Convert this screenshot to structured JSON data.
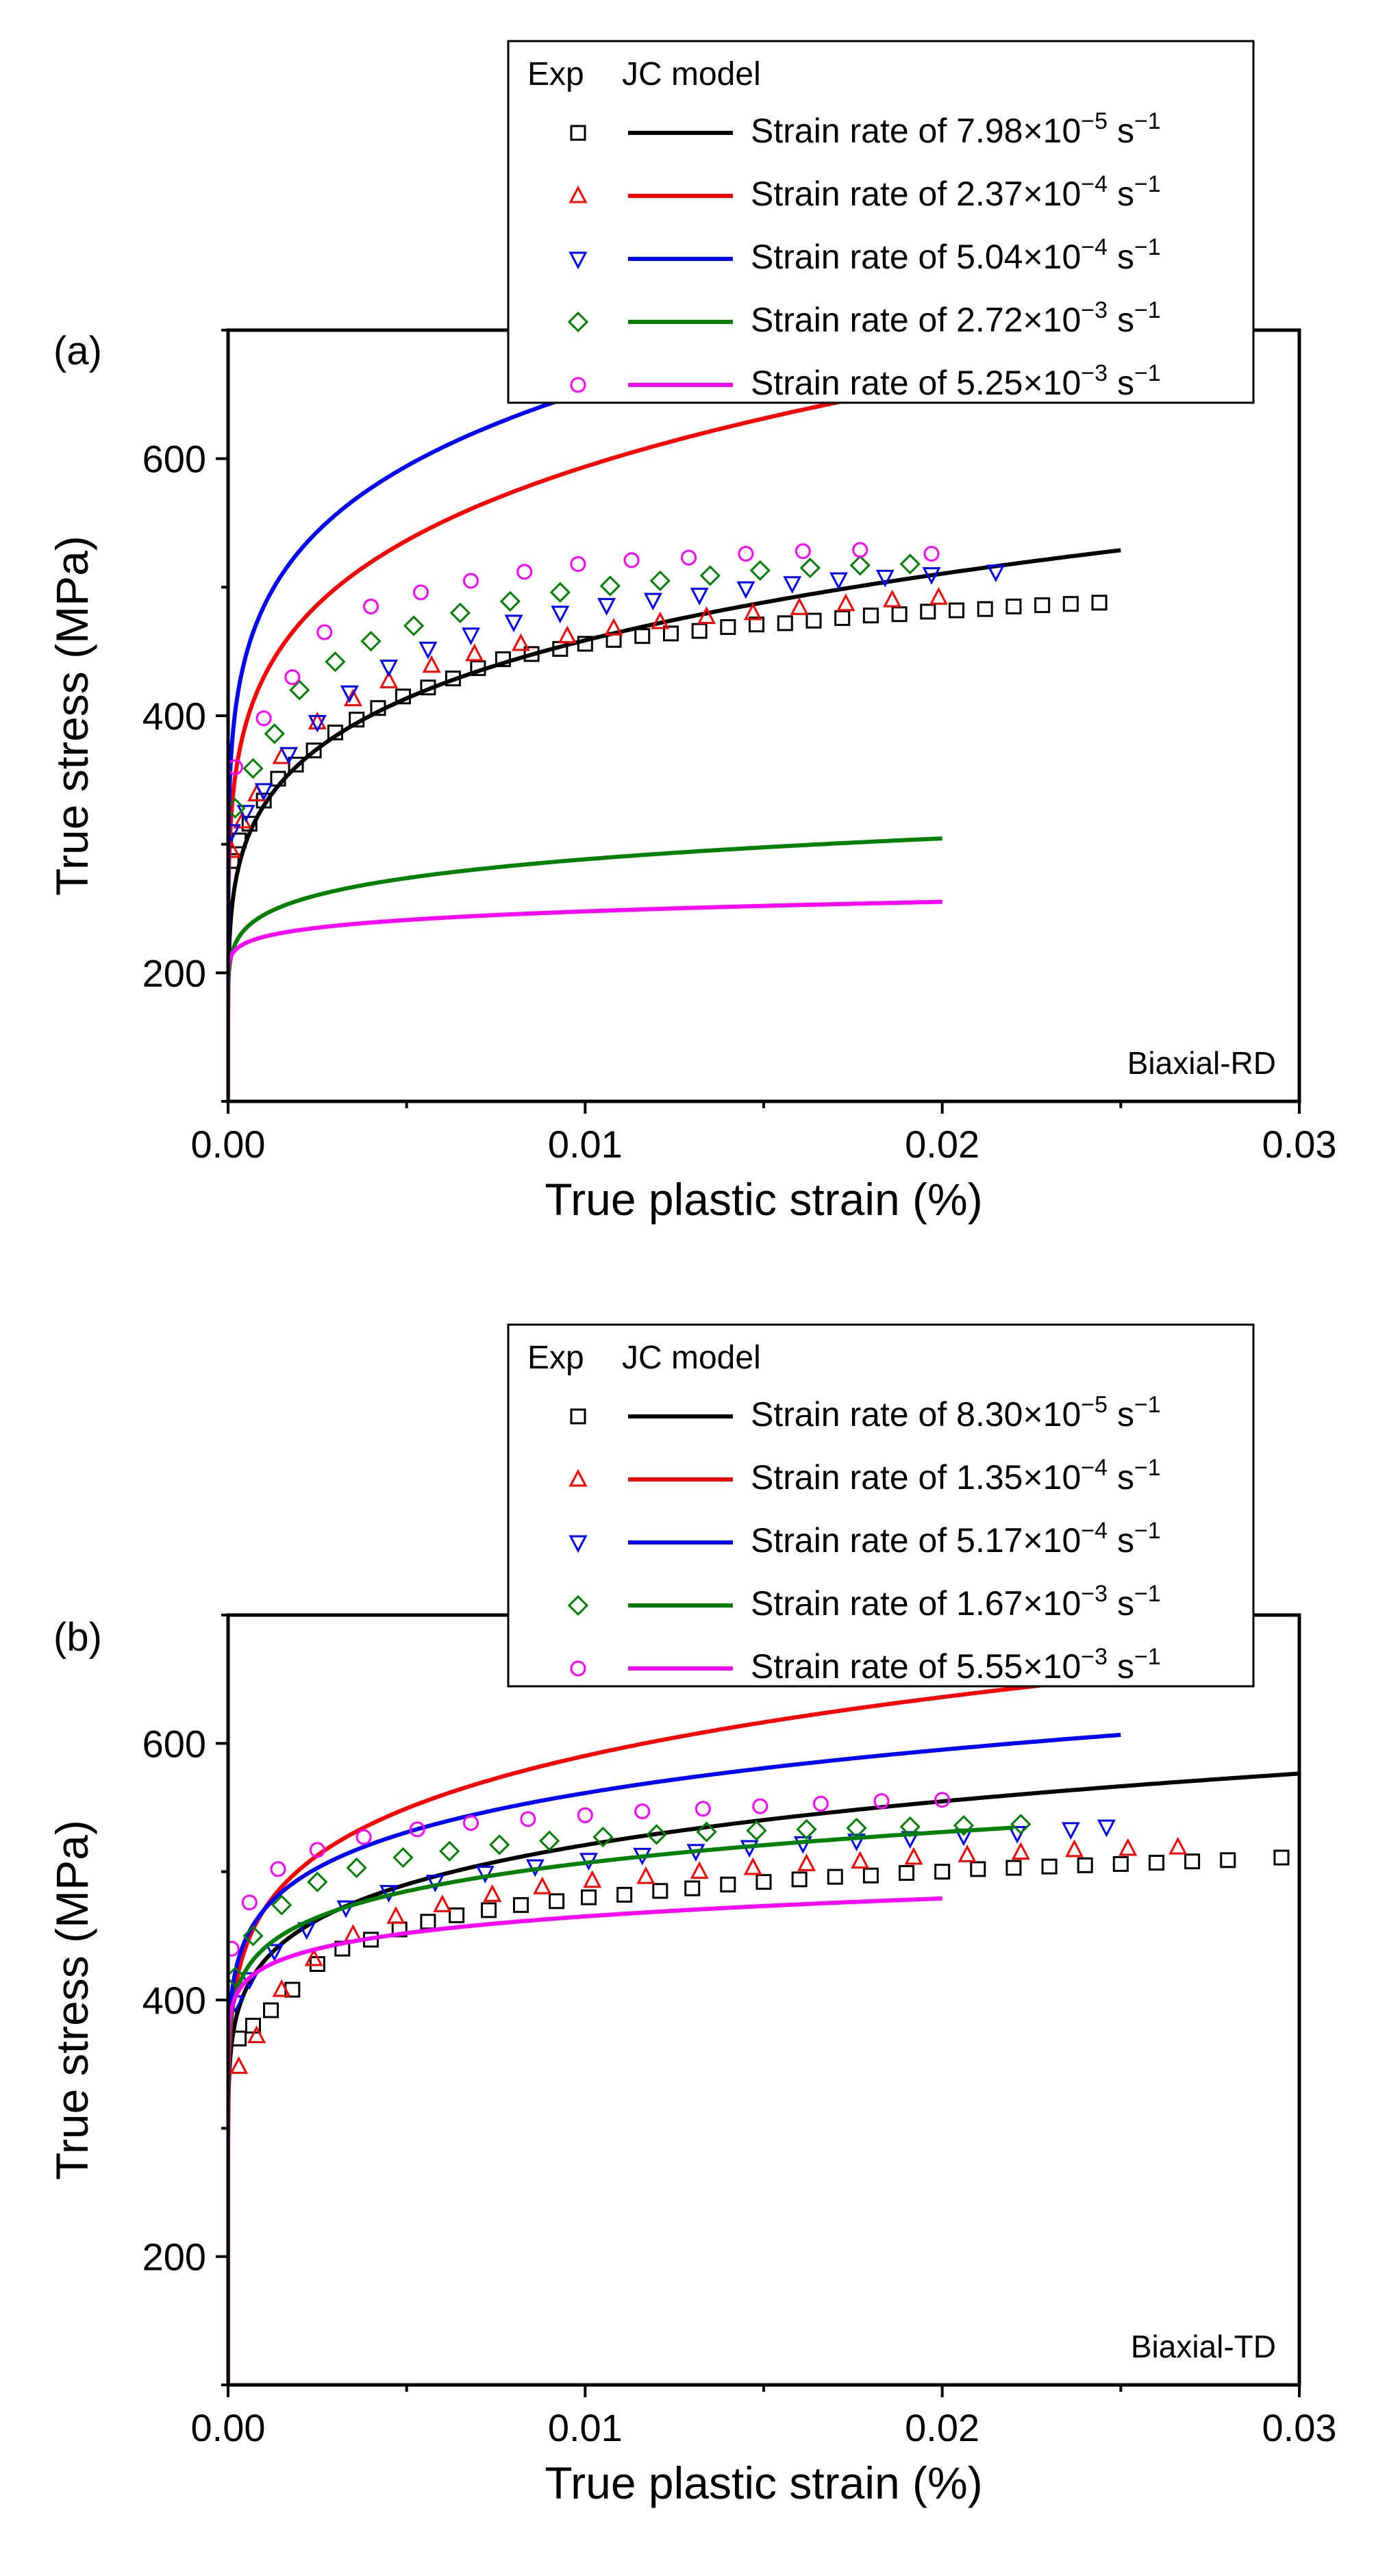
{
  "chart_data": [
    {
      "panel_label": "(a)",
      "type": "line",
      "xlabel": "True plastic strain (%)",
      "ylabel": "True stress (MPa)",
      "xlim": [
        0,
        0.03
      ],
      "ylim": [
        100,
        700
      ],
      "x_ticks": [
        "0.00",
        "0.01",
        "0.02",
        "0.03"
      ],
      "x_tick_values": [
        0,
        0.01,
        0.02,
        0.03
      ],
      "y_ticks": [
        "200",
        "400",
        "600"
      ],
      "y_tick_values": [
        200,
        400,
        600
      ],
      "annotation": "Biaxial-RD",
      "legend": {
        "header_exp": "Exp",
        "header_model": "JC model",
        "entries": [
          {
            "label_prefix": "Strain rate of 7.98×10",
            "exponent": "−5",
            "unit": " s",
            "unit_exponent": "−1"
          },
          {
            "label_prefix": "Strain rate of 2.37×10",
            "exponent": "−4",
            "unit": " s",
            "unit_exponent": "−1"
          },
          {
            "label_prefix": "Strain rate of 5.04×10",
            "exponent": "−4",
            "unit": " s",
            "unit_exponent": "−1"
          },
          {
            "label_prefix": "Strain rate of 2.72×10",
            "exponent": "−3",
            "unit": " s",
            "unit_exponent": "−1"
          },
          {
            "label_prefix": "Strain rate of 5.25×10",
            "exponent": "−3",
            "unit": " s",
            "unit_exponent": "−1"
          }
        ]
      },
      "series": [
        {
          "name": "Strain rate of 7.98×10⁻⁵ s⁻¹",
          "color": "#000000",
          "marker": "square",
          "model": {
            "A": 110,
            "B": 220,
            "n": 0.2,
            "x_max": 0.025
          },
          "exp": {
            "x": [
              0.0001,
              0.0003,
              0.0006,
              0.001,
              0.0014,
              0.0019,
              0.0024,
              0.003,
              0.0036,
              0.0042,
              0.0049,
              0.0056,
              0.0063,
              0.007,
              0.0077,
              0.0085,
              0.0093,
              0.01,
              0.0108,
              0.0116,
              0.0124,
              0.0132,
              0.014,
              0.0148,
              0.0156,
              0.0164,
              0.0172,
              0.018,
              0.0188,
              0.0196,
              0.0204,
              0.0212,
              0.022,
              0.0228,
              0.0236,
              0.0244
            ],
            "y": [
              287,
              303,
              316,
              334,
              351,
              362,
              373,
              387,
              397,
              406,
              415,
              422,
              429,
              437,
              444,
              448,
              452,
              456,
              459,
              462,
              464,
              466,
              469,
              471,
              472,
              474,
              476,
              478,
              479,
              481,
              482,
              483,
              485,
              486,
              487,
              488
            ]
          }
        },
        {
          "name": "Strain rate of 2.37×10⁻⁴ s⁻¹",
          "color": "#ff0000",
          "marker": "triangle-up",
          "model": {
            "A": 150,
            "B": 280,
            "n": 0.2,
            "x_max": 0.02
          },
          "exp": {
            "x": [
              0.0001,
              0.0004,
              0.0008,
              0.0015,
              0.0025,
              0.0035,
              0.0045,
              0.0057,
              0.0069,
              0.0082,
              0.0095,
              0.0108,
              0.0121,
              0.0134,
              0.0147,
              0.016,
              0.0173,
              0.0186,
              0.0199
            ],
            "y": [
              295,
              318,
              339,
              368,
              395,
              413,
              427,
              439,
              448,
              456,
              462,
              468,
              473,
              477,
              480,
              484,
              487,
              490,
              492
            ]
          }
        },
        {
          "name": "Strain rate of 5.04×10⁻⁴ s⁻¹",
          "color": "#0000ff",
          "marker": "triangle-down",
          "model": {
            "A": 160,
            "B": 325,
            "n": 0.18,
            "x_max": 0.02
          },
          "exp": {
            "x": [
              0.0001,
              0.0005,
              0.001,
              0.0017,
              0.0025,
              0.0034,
              0.0045,
              0.0056,
              0.0068,
              0.008,
              0.0093,
              0.0106,
              0.0119,
              0.0132,
              0.0145,
              0.0158,
              0.0171,
              0.0184,
              0.0197,
              0.0215
            ],
            "y": [
              310,
              325,
              342,
              370,
              395,
              418,
              438,
              452,
              463,
              473,
              480,
              486,
              490,
              494,
              499,
              503,
              506,
              508,
              510,
              512
            ]
          }
        },
        {
          "name": "Strain rate of 2.72×10⁻³ s⁻¹",
          "color": "#008000",
          "marker": "diamond",
          "model": {
            "A": 140,
            "B": 105,
            "n": 0.15,
            "x_max": 0.02
          },
          "exp": {
            "x": [
              0.0002,
              0.0007,
              0.0013,
              0.002,
              0.003,
              0.004,
              0.0052,
              0.0065,
              0.0079,
              0.0093,
              0.0107,
              0.0121,
              0.0135,
              0.0149,
              0.0163,
              0.0177,
              0.0191
            ],
            "y": [
              328,
              359,
              386,
              420,
              442,
              458,
              470,
              480,
              489,
              496,
              501,
              505,
              509,
              513,
              515,
              517,
              518
            ]
          }
        },
        {
          "name": "Strain rate of 5.25×10⁻³ s⁻¹",
          "color": "#ff00ff",
          "marker": "circle",
          "model": {
            "A": 180,
            "B": 48,
            "n": 0.15,
            "x_max": 0.02
          },
          "exp": {
            "x": [
              0.0002,
              0.001,
              0.0018,
              0.0027,
              0.004,
              0.0054,
              0.0068,
              0.0083,
              0.0098,
              0.0113,
              0.0129,
              0.0145,
              0.0161,
              0.0177,
              0.0197
            ],
            "y": [
              360,
              398,
              430,
              465,
              485,
              496,
              505,
              512,
              518,
              521,
              523,
              526,
              528,
              529,
              526
            ]
          }
        }
      ]
    },
    {
      "panel_label": "(b)",
      "type": "line",
      "xlabel": "True plastic strain (%)",
      "ylabel": "True stress (MPa)",
      "xlim": [
        0,
        0.03
      ],
      "ylim": [
        100,
        700
      ],
      "x_ticks": [
        "0.00",
        "0.01",
        "0.02",
        "0.03"
      ],
      "x_tick_values": [
        0,
        0.01,
        0.02,
        0.03
      ],
      "y_ticks": [
        "200",
        "400",
        "600"
      ],
      "y_tick_values": [
        200,
        400,
        600
      ],
      "annotation": "Biaxial-TD",
      "legend": {
        "header_exp": "Exp",
        "header_model": "JC model",
        "entries": [
          {
            "label_prefix": "Strain rate of 8.30×10",
            "exponent": "−5",
            "unit": " s",
            "unit_exponent": "−1"
          },
          {
            "label_prefix": "Strain rate of 1.35×10",
            "exponent": "−4",
            "unit": " s",
            "unit_exponent": "−1"
          },
          {
            "label_prefix": "Strain rate of 5.17×10",
            "exponent": "−4",
            "unit": " s",
            "unit_exponent": "−1"
          },
          {
            "label_prefix": "Strain rate of 1.67×10",
            "exponent": "−3",
            "unit": " s",
            "unit_exponent": "−1"
          },
          {
            "label_prefix": "Strain rate of 5.55×10",
            "exponent": "−3",
            "unit": " s",
            "unit_exponent": "−1"
          }
        ]
      },
      "series": [
        {
          "name": "Strain rate of 8.30×10⁻⁵ s⁻¹",
          "color": "#000000",
          "marker": "square",
          "model": {
            "A": 210,
            "B": 220,
            "n": 0.15,
            "x_max": 0.03
          },
          "exp": {
            "x": [
              0.0003,
              0.0007,
              0.0012,
              0.0018,
              0.0025,
              0.0032,
              0.004,
              0.0048,
              0.0056,
              0.0064,
              0.0073,
              0.0082,
              0.0092,
              0.0101,
              0.0111,
              0.0121,
              0.013,
              0.014,
              0.015,
              0.016,
              0.017,
              0.018,
              0.019,
              0.02,
              0.021,
              0.022,
              0.023,
              0.024,
              0.025,
              0.026,
              0.027,
              0.028,
              0.0295
            ],
            "y": [
              370,
              380,
              392,
              408,
              428,
              440,
              447,
              455,
              461,
              466,
              470,
              474,
              477,
              480,
              482,
              485,
              487,
              490,
              492,
              494,
              496,
              497,
              499,
              500,
              502,
              503,
              504,
              505,
              506,
              507,
              508,
              509,
              511
            ]
          }
        },
        {
          "name": "Strain rate of 1.35×10⁻⁴ s⁻¹",
          "color": "#ff0000",
          "marker": "triangle-up",
          "model": {
            "A": 200,
            "B": 270,
            "n": 0.16,
            "x_max": 0.025
          },
          "exp": {
            "x": [
              0.0003,
              0.0008,
              0.0015,
              0.0024,
              0.0035,
              0.0047,
              0.006,
              0.0074,
              0.0088,
              0.0102,
              0.0117,
              0.0132,
              0.0147,
              0.0162,
              0.0177,
              0.0192,
              0.0207,
              0.0222,
              0.0237,
              0.0252,
              0.0266
            ],
            "y": [
              348,
              372,
              408,
              432,
              451,
              465,
              474,
              482,
              488,
              493,
              496,
              500,
              503,
              506,
              508,
              511,
              513,
              515,
              517,
              518,
              519
            ]
          }
        },
        {
          "name": "Strain rate of 5.17×10⁻⁴ s⁻¹",
          "color": "#0000ff",
          "marker": "triangle-down",
          "model": {
            "A": 230,
            "B": 240,
            "n": 0.14,
            "x_max": 0.025
          },
          "exp": {
            "x": [
              0.0002,
              0.0006,
              0.0013,
              0.0022,
              0.0033,
              0.0045,
              0.0058,
              0.0072,
              0.0086,
              0.0101,
              0.0116,
              0.0131,
              0.0146,
              0.0161,
              0.0176,
              0.0191,
              0.0206,
              0.0221,
              0.0236,
              0.0246
            ],
            "y": [
              398,
              416,
              438,
              455,
              472,
              484,
              492,
              499,
              504,
              509,
              513,
              516,
              519,
              522,
              524,
              526,
              528,
              530,
              533,
              535
            ]
          }
        },
        {
          "name": "Strain rate of 1.67×10⁻³ s⁻¹",
          "color": "#008000",
          "marker": "diamond",
          "model": {
            "A": 230,
            "B": 210,
            "n": 0.12,
            "x_max": 0.022
          },
          "exp": {
            "x": [
              0.0002,
              0.0007,
              0.0015,
              0.0025,
              0.0036,
              0.0049,
              0.0062,
              0.0076,
              0.009,
              0.0105,
              0.012,
              0.0134,
              0.0148,
              0.0162,
              0.0176,
              0.0191,
              0.0206,
              0.0222
            ],
            "y": [
              418,
              450,
              474,
              492,
              503,
              511,
              516,
              521,
              524,
              527,
              529,
              531,
              532,
              533,
              534,
              535,
              536,
              537
            ]
          }
        },
        {
          "name": "Strain rate of 5.55×10⁻³ s⁻¹",
          "color": "#ff00ff",
          "marker": "circle",
          "model": {
            "A": 270,
            "B": 155,
            "n": 0.1,
            "x_max": 0.02
          },
          "exp": {
            "x": [
              0.0001,
              0.0006,
              0.0014,
              0.0025,
              0.0038,
              0.0053,
              0.0068,
              0.0084,
              0.01,
              0.0116,
              0.0133,
              0.0149,
              0.0166,
              0.0183,
              0.02
            ],
            "y": [
              440,
              476,
              502,
              517,
              527,
              533,
              538,
              541,
              544,
              547,
              549,
              551,
              553,
              555,
              556
            ]
          }
        }
      ]
    }
  ]
}
